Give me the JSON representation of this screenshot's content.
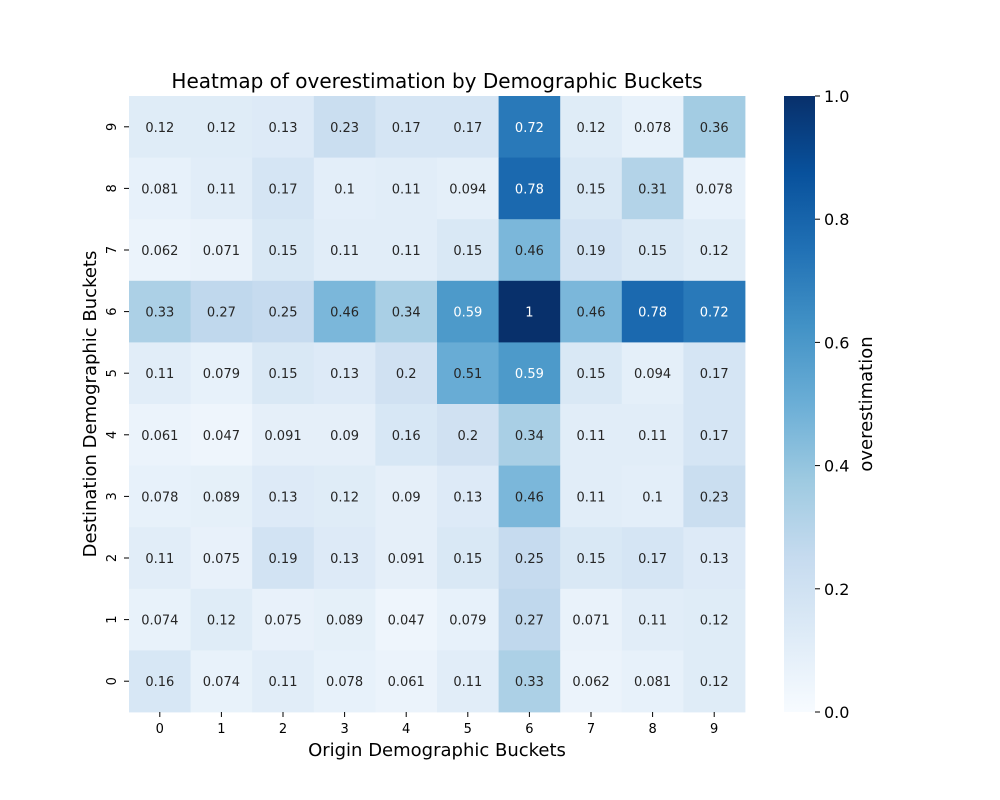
{
  "chart_data": {
    "type": "heatmap",
    "title": "Heatmap of overestimation by Demographic Buckets",
    "xlabel": "Origin Demographic Buckets",
    "ylabel": "Destination Demographic Buckets",
    "x_categories": [
      "0",
      "1",
      "2",
      "3",
      "4",
      "5",
      "6",
      "7",
      "8",
      "9"
    ],
    "y_categories_top_to_bottom": [
      "9",
      "8",
      "7",
      "6",
      "5",
      "4",
      "3",
      "2",
      "1",
      "0"
    ],
    "colorbar": {
      "label": "overestimation",
      "range": [
        0.0,
        1.0
      ],
      "ticks": [
        "0.0",
        "0.2",
        "0.4",
        "0.6",
        "0.8",
        "1.0"
      ],
      "colormap": "Blues",
      "low_color": "#f7fbff",
      "high_color": "#08306b"
    },
    "values_top_to_bottom": [
      [
        0.12,
        0.12,
        0.13,
        0.23,
        0.17,
        0.17,
        0.72,
        0.12,
        0.078,
        0.36
      ],
      [
        0.081,
        0.11,
        0.17,
        0.1,
        0.11,
        0.094,
        0.78,
        0.15,
        0.31,
        0.078
      ],
      [
        0.062,
        0.071,
        0.15,
        0.11,
        0.11,
        0.15,
        0.46,
        0.19,
        0.15,
        0.12
      ],
      [
        0.33,
        0.27,
        0.25,
        0.46,
        0.34,
        0.59,
        1,
        0.46,
        0.78,
        0.72
      ],
      [
        0.11,
        0.079,
        0.15,
        0.13,
        0.2,
        0.51,
        0.59,
        0.15,
        0.094,
        0.17
      ],
      [
        0.061,
        0.047,
        0.091,
        0.09,
        0.16,
        0.2,
        0.34,
        0.11,
        0.11,
        0.17
      ],
      [
        0.078,
        0.089,
        0.13,
        0.12,
        0.09,
        0.13,
        0.46,
        0.11,
        0.1,
        0.23
      ],
      [
        0.11,
        0.075,
        0.19,
        0.13,
        0.091,
        0.15,
        0.25,
        0.15,
        0.17,
        0.13
      ],
      [
        0.074,
        0.12,
        0.075,
        0.089,
        0.047,
        0.079,
        0.27,
        0.071,
        0.11,
        0.12
      ],
      [
        0.16,
        0.074,
        0.11,
        0.078,
        0.061,
        0.11,
        0.33,
        0.062,
        0.081,
        0.12
      ]
    ]
  }
}
